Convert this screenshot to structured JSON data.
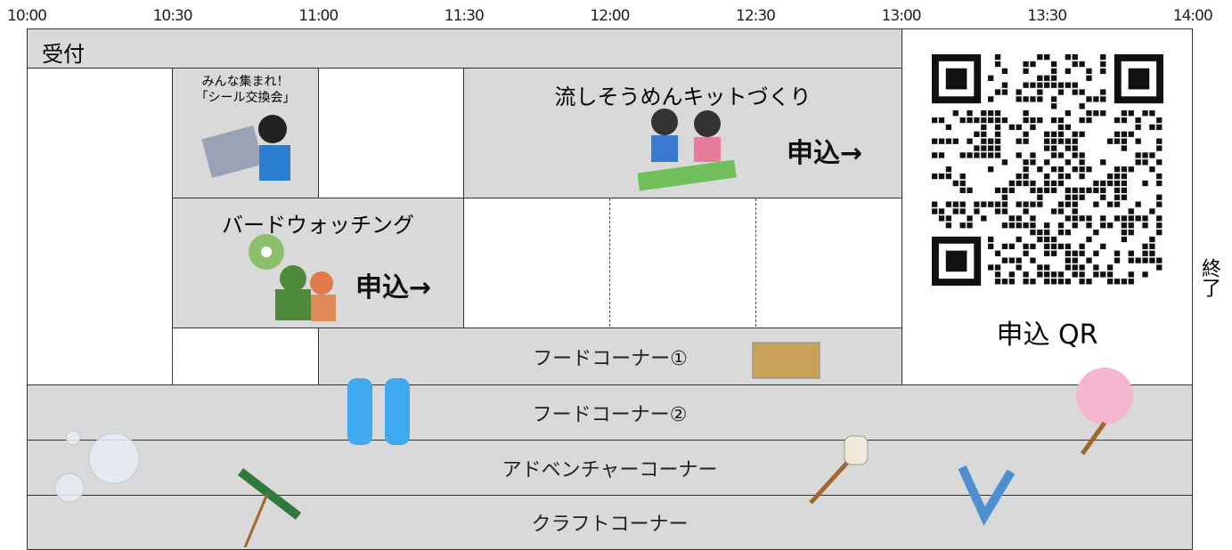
{
  "time_axis": [
    "10:00",
    "10:30",
    "11:00",
    "11:30",
    "12:00",
    "12:30",
    "13:00",
    "13:30",
    "14:00"
  ],
  "reception": "受付",
  "sticker_exchange": {
    "line1": "みんな集まれ！",
    "line2": "「シール交換会」"
  },
  "somen_kit": {
    "title": "流しそうめんキットづくり",
    "apply": "申込→"
  },
  "bird_watching": {
    "title": "バードウォッチング",
    "apply": "申込→"
  },
  "food_corner_1": "フードコーナー①",
  "food_corner_2": "フードコーナー②",
  "adventure_corner": "アドベンチャーコーナー",
  "craft_corner": "クラフトコーナー",
  "qr_label": "申込 QR",
  "end_label": "終了"
}
